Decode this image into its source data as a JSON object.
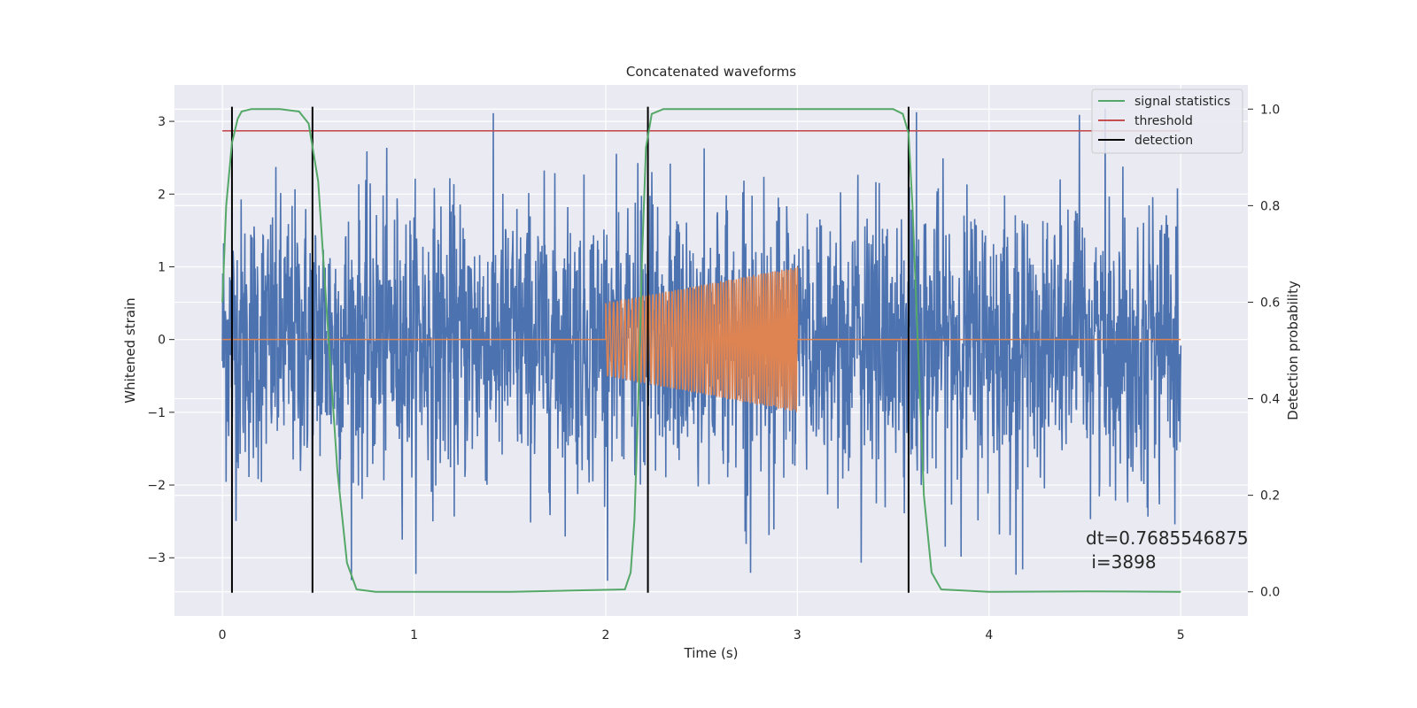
{
  "chart_data": {
    "type": "line",
    "title": "Concatenated waveforms",
    "xlabel": "Time (s)",
    "ylabel": "Whitened strain",
    "y2label": "Detection probability",
    "xlim": [
      -0.25,
      5.35
    ],
    "ylim": [
      -3.8,
      3.5
    ],
    "y2lim": [
      -0.05,
      1.05
    ],
    "xticks": [
      0,
      1,
      2,
      3,
      4,
      5
    ],
    "yticks": [
      -3,
      -2,
      -1,
      0,
      1,
      2,
      3
    ],
    "y2ticks": [
      0.0,
      0.2,
      0.4,
      0.6,
      0.8,
      1.0
    ],
    "xtick_labels": [
      "0",
      "1",
      "2",
      "3",
      "4",
      "5"
    ],
    "ytick_labels": [
      "−3",
      "−2",
      "−1",
      "0",
      "1",
      "2",
      "3"
    ],
    "y2tick_labels": [
      "0.0",
      "0.2",
      "0.4",
      "0.6",
      "0.8",
      "1.0"
    ],
    "grid": true,
    "legend": {
      "placement": "top-right",
      "entries": [
        {
          "label": "signal statistics",
          "color": "#55a868"
        },
        {
          "label": "threshold",
          "color": "#c44e52"
        },
        {
          "label": "detection",
          "color": "#000000"
        }
      ]
    },
    "series": [
      {
        "role": "noisy whitened strain",
        "color": "#4c72b0",
        "x_range": [
          0,
          5
        ],
        "amplitude_range": [
          -3.4,
          3.2
        ]
      },
      {
        "role": "injected chirp",
        "color": "#dd8452",
        "x": [
          2,
          3
        ],
        "amplitude_start": 0.5,
        "amplitude_end": 1.0
      },
      {
        "name": "signal statistics",
        "axis": "right",
        "color": "#55a868",
        "x": [
          0,
          0.02,
          0.05,
          0.08,
          0.1,
          0.15,
          0.3,
          0.4,
          0.45,
          0.5,
          0.55,
          0.6,
          0.65,
          0.7,
          0.8,
          1.5,
          2.1,
          2.13,
          2.15,
          2.17,
          2.19,
          2.21,
          2.24,
          2.3,
          3.5,
          3.55,
          3.58,
          3.6,
          3.63,
          3.66,
          3.7,
          3.75,
          4.0,
          4.5,
          5.0
        ],
        "y": [
          0.6,
          0.8,
          0.93,
          0.98,
          0.995,
          1.0,
          1.0,
          0.995,
          0.97,
          0.85,
          0.55,
          0.25,
          0.06,
          0.005,
          0.0,
          0.0,
          0.005,
          0.04,
          0.15,
          0.4,
          0.7,
          0.92,
          0.99,
          1.0,
          1.0,
          0.99,
          0.95,
          0.8,
          0.5,
          0.2,
          0.04,
          0.005,
          0.0,
          0.001,
          0.0
        ]
      },
      {
        "name": "threshold",
        "axis": "left",
        "color": "#c44e52",
        "x": [
          0,
          5
        ],
        "y": [
          2.87,
          2.87
        ]
      },
      {
        "name": "detection",
        "axis": "left",
        "color": "#000000",
        "x": [
          0.05,
          0.47,
          2.22,
          3.58
        ],
        "y_range": [
          -3.48,
          3.2
        ]
      }
    ],
    "annotation": {
      "line1": "dt=0.7685546875",
      "line2": " i=3898",
      "x": 4.5,
      "y": -2.7
    }
  }
}
